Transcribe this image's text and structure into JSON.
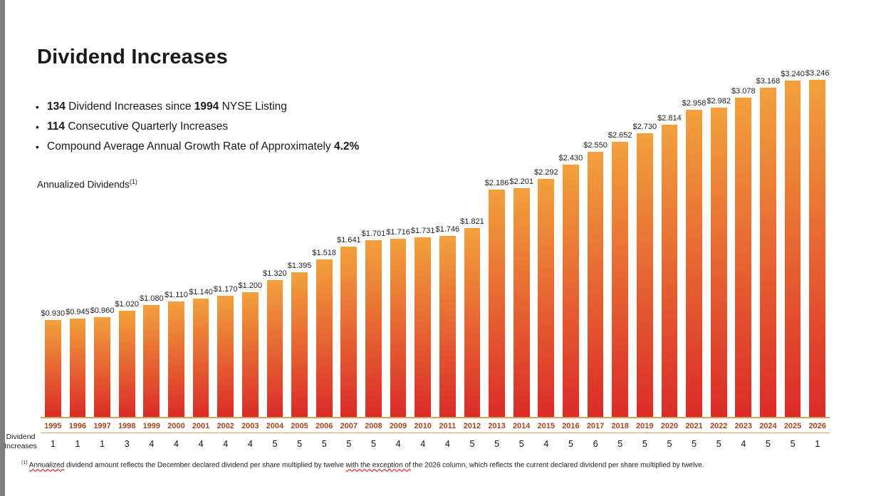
{
  "page": {
    "title": "Dividend Increases",
    "annualized_label": "Annualized Dividends",
    "annualized_sup": "(1)"
  },
  "bullets": [
    [
      {
        "text": "134",
        "bold": true
      },
      {
        "text": " Dividend Increases since ",
        "bold": false
      },
      {
        "text": "1994",
        "bold": true
      },
      {
        "text": " NYSE Listing",
        "bold": false
      }
    ],
    [
      {
        "text": "114",
        "bold": true
      },
      {
        "text": " Consecutive Quarterly Increases",
        "bold": false
      }
    ],
    [
      {
        "text": "Compound Average Annual Growth Rate of Approximately ",
        "bold": false
      },
      {
        "text": "4.2%",
        "bold": true
      }
    ]
  ],
  "side_label": {
    "line1": "Dividend",
    "line2": "Increases"
  },
  "chart_data": {
    "type": "bar",
    "title": "Annualized Dividends",
    "value_prefix": "$",
    "categories": [
      "1995",
      "1996",
      "1997",
      "1998",
      "1999",
      "2000",
      "2001",
      "2002",
      "2003",
      "2004",
      "2005",
      "2006",
      "2007",
      "2008",
      "2009",
      "2010",
      "2011",
      "2012",
      "2013",
      "2014",
      "2015",
      "2016",
      "2017",
      "2018",
      "2019",
      "2020",
      "2021",
      "2022",
      "2023",
      "2024",
      "2025",
      "2026"
    ],
    "values": [
      0.93,
      0.945,
      0.96,
      1.02,
      1.08,
      1.11,
      1.14,
      1.17,
      1.2,
      1.32,
      1.395,
      1.518,
      1.641,
      1.701,
      1.716,
      1.731,
      1.746,
      1.821,
      2.186,
      2.201,
      2.292,
      2.43,
      2.55,
      2.652,
      2.73,
      2.814,
      2.958,
      2.982,
      3.078,
      3.168,
      3.24,
      3.246
    ],
    "increases": [
      1,
      1,
      1,
      3,
      4,
      4,
      4,
      4,
      4,
      5,
      5,
      5,
      5,
      5,
      4,
      4,
      4,
      5,
      5,
      5,
      4,
      5,
      6,
      5,
      5,
      5,
      5,
      5,
      4,
      5,
      5,
      1
    ],
    "ylim": [
      0,
      3.3
    ],
    "bar_gradient_top": "#f2a13c",
    "bar_gradient_bottom": "#db2b28",
    "year_label_color": "#a3441f",
    "axis_line_color": "#d2a05a"
  },
  "footnote": {
    "sup": "(1)",
    "seg1": "Annualized",
    "seg2": " dividend amount reflects the December declared dividend per share multiplied by twelve ",
    "seg3": "with the exception of",
    "seg4": " the 2026 column, which reflects the current declared dividend per share multiplied by twelve."
  }
}
